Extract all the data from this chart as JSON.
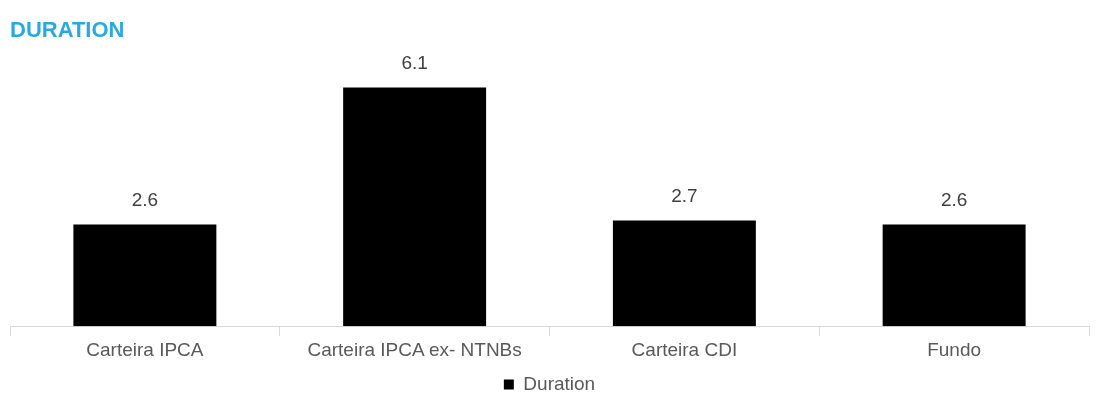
{
  "chart_data": {
    "type": "bar",
    "title": "DURATION",
    "categories": [
      "Carteira IPCA",
      "Carteira IPCA ex- NTNBs",
      "Carteira CDI",
      "Fundo"
    ],
    "series": [
      {
        "name": "Duration",
        "color": "#000000",
        "values": [
          2.6,
          6.1,
          2.7,
          2.6
        ]
      }
    ],
    "data_labels": true,
    "legend": "bottom",
    "grid": false
  }
}
